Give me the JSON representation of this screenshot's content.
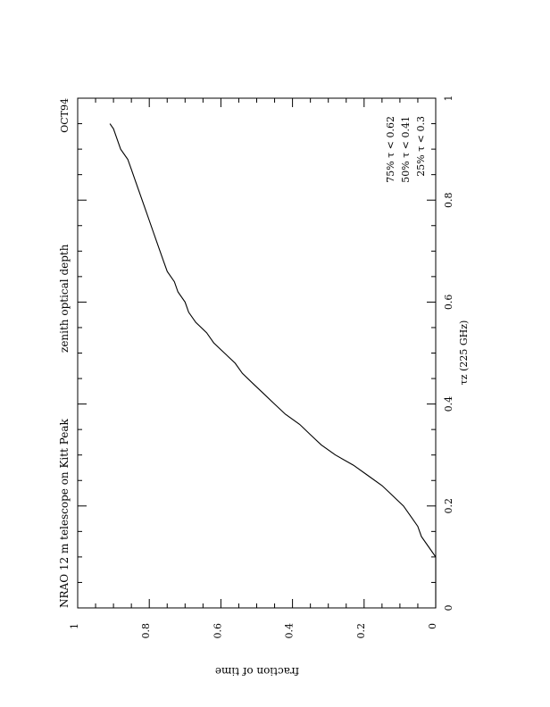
{
  "chart_data": {
    "type": "line",
    "title": "NRAO 12 m telescope on Kitt Peak",
    "subtitle": "zenith optical depth",
    "period_label": "OCT94",
    "xlabel": "τz (225 GHz)",
    "ylabel": "fraction of time",
    "xlim": [
      0,
      1
    ],
    "ylim": [
      0,
      1
    ],
    "x_ticks": [
      "0",
      "0.2",
      "0.4",
      "0.6",
      "0.8",
      "1"
    ],
    "y_ticks": [
      "0",
      "0.2",
      "0.4",
      "0.6",
      "0.8",
      "1"
    ],
    "grid": false,
    "orientation": "rotated 90° clockwise on page",
    "annotations": [
      "75%  τ < 0.62",
      "50%  τ < 0.41",
      "25%  τ < 0.3"
    ],
    "series": [
      {
        "x": [
          0,
          0.05,
          0.1,
          0.12,
          0.14,
          0.16,
          0.18,
          0.2,
          0.22,
          0.24,
          0.26,
          0.28,
          0.3,
          0.32,
          0.34,
          0.36,
          0.38,
          0.4,
          0.42,
          0.44,
          0.46,
          0.48,
          0.5,
          0.52,
          0.54,
          0.56,
          0.58,
          0.6,
          0.62,
          0.64,
          0.66,
          0.68,
          0.7,
          0.72,
          0.74,
          0.76,
          0.78,
          0.8,
          0.82,
          0.84,
          0.86,
          0.88,
          0.9,
          0.92,
          0.94,
          0.95
        ],
        "values": [
          0,
          0,
          0,
          0.02,
          0.04,
          0.05,
          0.07,
          0.09,
          0.12,
          0.15,
          0.19,
          0.23,
          0.28,
          0.32,
          0.35,
          0.38,
          0.42,
          0.45,
          0.48,
          0.51,
          0.54,
          0.56,
          0.59,
          0.62,
          0.64,
          0.67,
          0.69,
          0.7,
          0.72,
          0.73,
          0.75,
          0.76,
          0.77,
          0.78,
          0.79,
          0.8,
          0.81,
          0.82,
          0.83,
          0.84,
          0.85,
          0.86,
          0.88,
          0.89,
          0.9,
          0.91
        ]
      }
    ]
  }
}
